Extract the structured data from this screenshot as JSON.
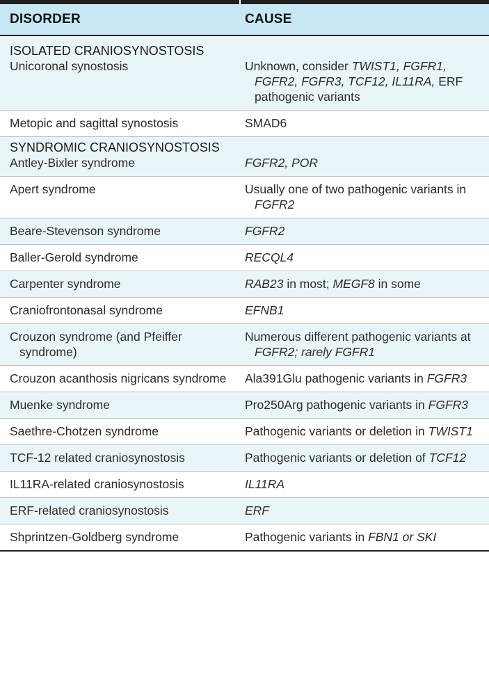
{
  "header": {
    "disorder": "DISORDER",
    "cause": "CAUSE"
  },
  "isolated": {
    "title": "ISOLATED CRANIOSYNOSTOSIS",
    "rows": [
      {
        "disorder": "Unicoronal synostosis",
        "cause_pre": "Unknown, consider ",
        "cause_it1": "TWIST1, FGFR1, FGFR2, FGFR3, TCF12, IL11RA,",
        "cause_post": " ERF pathogenic variants"
      },
      {
        "disorder": "Metopic and sagittal synostosis",
        "cause": "SMAD6"
      }
    ]
  },
  "syndromic": {
    "title": "SYNDROMIC CRANIOSYNOSTOSIS",
    "rows": [
      {
        "disorder": "Antley-Bixler syndrome",
        "cause_it": "FGFR2, POR"
      },
      {
        "disorder": "Apert syndrome",
        "cause_pre": "Usually one of two pathogenic variants in ",
        "cause_it": "FGFR2"
      },
      {
        "disorder": "Beare-Stevenson syndrome",
        "cause_it": "FGFR2"
      },
      {
        "disorder": "Baller-Gerold syndrome",
        "cause_it": "RECQL4"
      },
      {
        "disorder": "Carpenter syndrome",
        "cause_it1": "RAB23",
        "cause_mid": " in most; ",
        "cause_it2": "MEGF8",
        "cause_post": " in some"
      },
      {
        "disorder": "Craniofrontonasal syndrome",
        "cause_it": "EFNB1"
      },
      {
        "disorder": "Crouzon syndrome (and Pfeiffer syndrome)",
        "cause_pre": "Numerous different pathogenic variants at ",
        "cause_it": "FGFR2; rarely FGFR1"
      },
      {
        "disorder": "Crouzon acanthosis nigricans syndrome",
        "cause_pre": "Ala391Glu pathogenic variants in ",
        "cause_it": "FGFR3"
      },
      {
        "disorder": "Muenke syndrome",
        "cause_pre": "Pro250Arg pathogenic variants in ",
        "cause_it": "FGFR3"
      },
      {
        "disorder": "Saethre-Chotzen syndrome",
        "cause_pre": "Pathogenic variants or deletion in ",
        "cause_it": "TWIST1"
      },
      {
        "disorder": "TCF-12 related craniosynostosis",
        "cause_pre": "Pathogenic variants or deletion of ",
        "cause_it": "TCF12"
      },
      {
        "disorder": "IL11RA-related craniosynostosis",
        "cause_it": "IL11RA"
      },
      {
        "disorder": "ERF-related craniosynostosis",
        "cause_it": "ERF"
      },
      {
        "disorder": "Shprintzen-Goldberg syndrome",
        "cause_pre": "Pathogenic variants in ",
        "cause_it": "FBN1 or SKI"
      }
    ]
  },
  "colors": {
    "header_bg": "#c7e7f4",
    "stripe_bg": "#eaf5fa",
    "rule": "#1f1f1f"
  }
}
